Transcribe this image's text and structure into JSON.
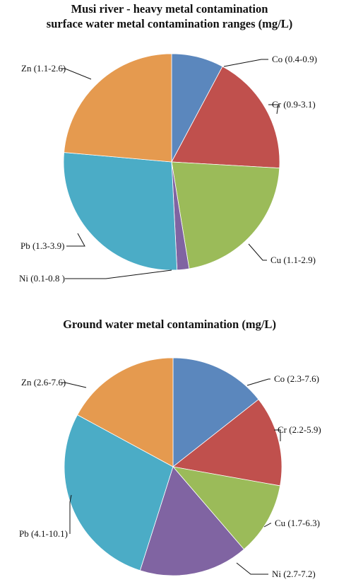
{
  "chart_data": [
    {
      "type": "pie",
      "title_lines": [
        "Musi river - heavy metal contamination",
        "surface water metal contamination ranges (mg/L)"
      ],
      "slices": [
        {
          "label": "Co (0.4-0.9)",
          "value": 7.8,
          "color": "#5b87bd"
        },
        {
          "label": "Cr (0.9-3.1)",
          "value": 18.1,
          "color": "#c0504d"
        },
        {
          "label": "Cu (1.1-2.9)",
          "value": 21.5,
          "color": "#9bbb59"
        },
        {
          "label": "Ni (0.1-0.8 )",
          "value": 1.8,
          "color": "#8064a2"
        },
        {
          "label": "Pb (1.3-3.9)",
          "value": 27.2,
          "color": "#4bacc6"
        },
        {
          "label": "Zn (1.1-2.6)",
          "value": 23.6,
          "color": "#e59a4f"
        }
      ]
    },
    {
      "type": "pie",
      "title": "Ground water metal contamination (mg/L)",
      "slices": [
        {
          "label": "Co (2.3-7.6)",
          "value": 14.4,
          "color": "#5b87bd"
        },
        {
          "label": "Cr (2.2-5.9)",
          "value": 13.4,
          "color": "#c0504d"
        },
        {
          "label": "Cu (1.7-6.3)",
          "value": 10.9,
          "color": "#9bbb59"
        },
        {
          "label": "Ni (2.7-7.2)",
          "value": 16.2,
          "color": "#8064a2"
        },
        {
          "label": "Pb (4.1-10.1)",
          "value": 28.0,
          "color": "#4bacc6"
        },
        {
          "label": "Zn (2.6-7.6)",
          "value": 17.1,
          "color": "#e59a4f"
        }
      ]
    }
  ]
}
